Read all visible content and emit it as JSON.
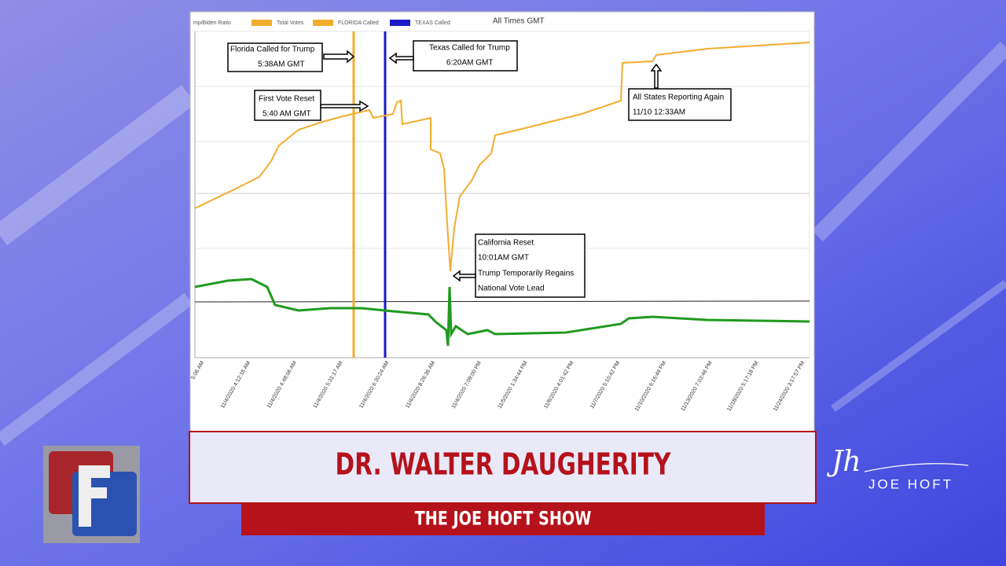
{
  "chart_panel": {
    "legend": [
      "mp/Biden Ratio",
      "Total Votes",
      "FLORIDA Called",
      "TEXAS Called"
    ],
    "note": "All Times GMT",
    "annotations": [
      {
        "lines": [
          "Florida Called for Trump",
          "5:38AM GMT"
        ]
      },
      {
        "lines": [
          "Texas Called for Trump",
          "6:20AM GMT"
        ]
      },
      {
        "lines": [
          "First Vote Reset",
          "5:40 AM GMT"
        ]
      },
      {
        "lines": [
          "All States Reporting Again",
          "11/10 12:33AM"
        ]
      },
      {
        "lines": [
          "California Reset",
          "10:01AM GMT",
          "Trump Temporarily Regains",
          "National Vote Lead"
        ]
      }
    ],
    "x_labels": [
      "5:06 AM",
      "11/4/2020 4:12:16 AM",
      "11/4/2020 4:48:06 AM",
      "11/4/2020 5:31:17 AM",
      "11/4/2020 6:30:24 AM",
      "11/4/2020 8:26:36 AM",
      "11/4/2020 7:09:00 PM",
      "11/5/2020 1:34:44 PM",
      "11/6/2020 4:01:42 PM",
      "11/7/2020 5:10:42 PM",
      "11/10/2020 6:16:49 PM",
      "11/13/2020 7:03:46 PM",
      "11/18/2020 5:17:18 PM",
      "11/24/2020 3:17:57 PM"
    ]
  },
  "lower_third": {
    "name": "DR. WALTER DAUGHERITY",
    "show": "THE JOE HOFT SHOW"
  },
  "brand": {
    "monogram": "Jh",
    "name": "JOE HOFT"
  }
}
